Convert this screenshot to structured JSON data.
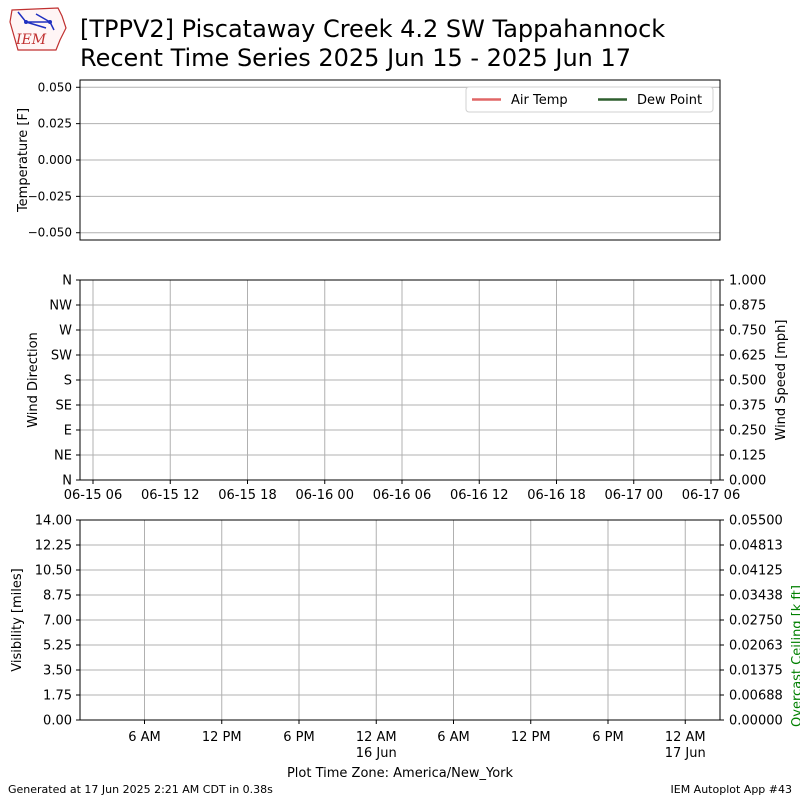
{
  "header": {
    "title_line1": "[TPPV2] Piscataway Creek 4.2 SW Tappahannock",
    "title_line2": "Recent Time Series 2025 Jun 15 - 2025 Jun 17",
    "logo_text": "IEM"
  },
  "footer": {
    "generated": "Generated at 17 Jun 2025 2:21 AM CDT in 0.38s",
    "app": "IEM Autoplot App #43"
  },
  "chart_data": [
    {
      "type": "line",
      "panel": "temperature",
      "ylabel": "Temperature [F]",
      "ylim": [
        -0.055,
        0.055
      ],
      "yticks": [
        -0.05,
        -0.025,
        0.0,
        0.025,
        0.05
      ],
      "ytick_labels": [
        "−0.050",
        "−0.025",
        "0.000",
        "0.025",
        "0.050"
      ],
      "series": [
        {
          "name": "Air Temp",
          "color": "#e06666",
          "values": []
        },
        {
          "name": "Dew Point",
          "color": "#2f5f2f",
          "values": []
        }
      ],
      "legend": "top-right",
      "grid": true
    },
    {
      "type": "line",
      "panel": "wind",
      "ylabel": "Wind Direction",
      "y2label": "Wind Speed [mph]",
      "yticks": [
        "N",
        "NE",
        "E",
        "SE",
        "S",
        "SW",
        "W",
        "NW",
        "N"
      ],
      "y2lim": [
        0,
        1
      ],
      "y2ticks": [
        "0.000",
        "0.125",
        "0.250",
        "0.375",
        "0.500",
        "0.625",
        "0.750",
        "0.875",
        "1.000"
      ],
      "xticks": [
        "06-15 06",
        "06-15 12",
        "06-15 18",
        "06-16 00",
        "06-16 06",
        "06-16 12",
        "06-16 18",
        "06-17 00",
        "06-17 06"
      ],
      "series": [],
      "grid": true
    },
    {
      "type": "line",
      "panel": "visibility",
      "ylabel": "Visibility [miles]",
      "y2label": "Overcast Ceiling [k ft]",
      "y2label_color": "#008000",
      "ylim": [
        0,
        14
      ],
      "yticks": [
        "0.00",
        "1.75",
        "3.50",
        "5.25",
        "7.00",
        "8.75",
        "10.50",
        "12.25",
        "14.00"
      ],
      "y2lim": [
        0,
        0.055
      ],
      "y2ticks": [
        "0.00000",
        "0.00688",
        "0.01375",
        "0.02063",
        "0.02750",
        "0.03438",
        "0.04125",
        "0.04813",
        "0.05500"
      ],
      "xticks": [
        "6 AM",
        "12 PM",
        "6 PM",
        "12 AM",
        "6 AM",
        "12 PM",
        "6 PM",
        "12 AM"
      ],
      "xticks_sub": [
        "",
        "",
        "",
        "16 Jun",
        "",
        "",
        "",
        "17 Jun"
      ],
      "xlabel": "Plot Time Zone: America/New_York",
      "series": [],
      "grid": true
    }
  ]
}
